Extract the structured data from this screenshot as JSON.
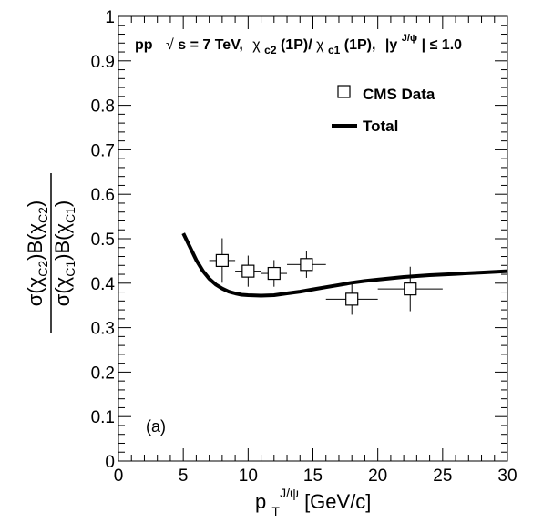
{
  "chart_data": {
    "type": "scatter",
    "title": {
      "prefix": "pp",
      "energy": "s = 7 TeV,",
      "ratio_c2": "(1P)/",
      "ratio_c1": "(1P),",
      "rapidity_sup": "J/ψ",
      "rapidity_tail": "| ≤ 1.0",
      "chi_symbol": "χ",
      "sub_c2": "c2",
      "sub_c1": "c1",
      "abs_y": "|y",
      "sqrt_symbol": "√"
    },
    "xlabel": {
      "main": "p",
      "sub": "T",
      "sup": "J/ψ",
      "unit": "[GeV/c]"
    },
    "ylabel": {
      "num_a": "σ(χ",
      "num_sub1": "C2",
      "num_b": ")B(χ",
      "num_sub2": "C2",
      "num_c": ")",
      "den_a": "σ(χ",
      "den_sub1": "C1",
      "den_b": ")B(χ",
      "den_sub2": "C1",
      "den_c": ")"
    },
    "xlim": [
      0,
      30
    ],
    "ylim": [
      0,
      1
    ],
    "x_ticks": [
      0,
      5,
      10,
      15,
      20,
      25,
      30
    ],
    "x_tick_labels": [
      "0",
      "5",
      "10",
      "15",
      "20",
      "25",
      "30"
    ],
    "y_ticks": [
      0,
      0.1,
      0.2,
      0.3,
      0.4,
      0.5,
      0.6,
      0.7,
      0.8,
      0.9,
      1
    ],
    "y_tick_labels": [
      "0",
      "0.1",
      "0.2",
      "0.3",
      "0.4",
      "0.5",
      "0.6",
      "0.7",
      "0.8",
      "0.9",
      "1"
    ],
    "legend": {
      "position": "top-right",
      "entries": [
        {
          "label": "CMS Data",
          "marker": "open-square"
        },
        {
          "label": "Total",
          "marker": "thick-line"
        }
      ]
    },
    "annotation": "(a)",
    "series": [
      {
        "name": "CMS Data",
        "kind": "points",
        "points": [
          {
            "x": 8.0,
            "y": 0.451,
            "xerr": 1.0,
            "yerr": 0.05
          },
          {
            "x": 10.0,
            "y": 0.427,
            "xerr": 1.0,
            "yerr": 0.035
          },
          {
            "x": 12.0,
            "y": 0.422,
            "xerr": 1.0,
            "yerr": 0.03
          },
          {
            "x": 14.5,
            "y": 0.442,
            "xerr": 1.5,
            "yerr": 0.03
          },
          {
            "x": 18.0,
            "y": 0.364,
            "xerr": 2.0,
            "yerr": 0.035
          },
          {
            "x": 22.5,
            "y": 0.387,
            "xerr": 2.5,
            "yerr": 0.05
          }
        ]
      },
      {
        "name": "Total",
        "kind": "line",
        "x": [
          5.0,
          5.5,
          6.0,
          6.5,
          7.0,
          7.5,
          8.0,
          8.5,
          9.0,
          9.5,
          10.0,
          11.0,
          12.0,
          13.0,
          14.0,
          15.0,
          16.0,
          17.0,
          18.0,
          19.0,
          20.0,
          22.0,
          24.0,
          26.0,
          28.0,
          30.0
        ],
        "y": [
          0.512,
          0.482,
          0.452,
          0.428,
          0.41,
          0.397,
          0.388,
          0.381,
          0.377,
          0.374,
          0.373,
          0.372,
          0.373,
          0.377,
          0.381,
          0.386,
          0.391,
          0.396,
          0.401,
          0.405,
          0.408,
          0.414,
          0.418,
          0.421,
          0.424,
          0.427
        ]
      }
    ],
    "grid": false,
    "colors": {
      "axis": "#000000",
      "data": "#000000",
      "background": "#ffffff"
    }
  }
}
